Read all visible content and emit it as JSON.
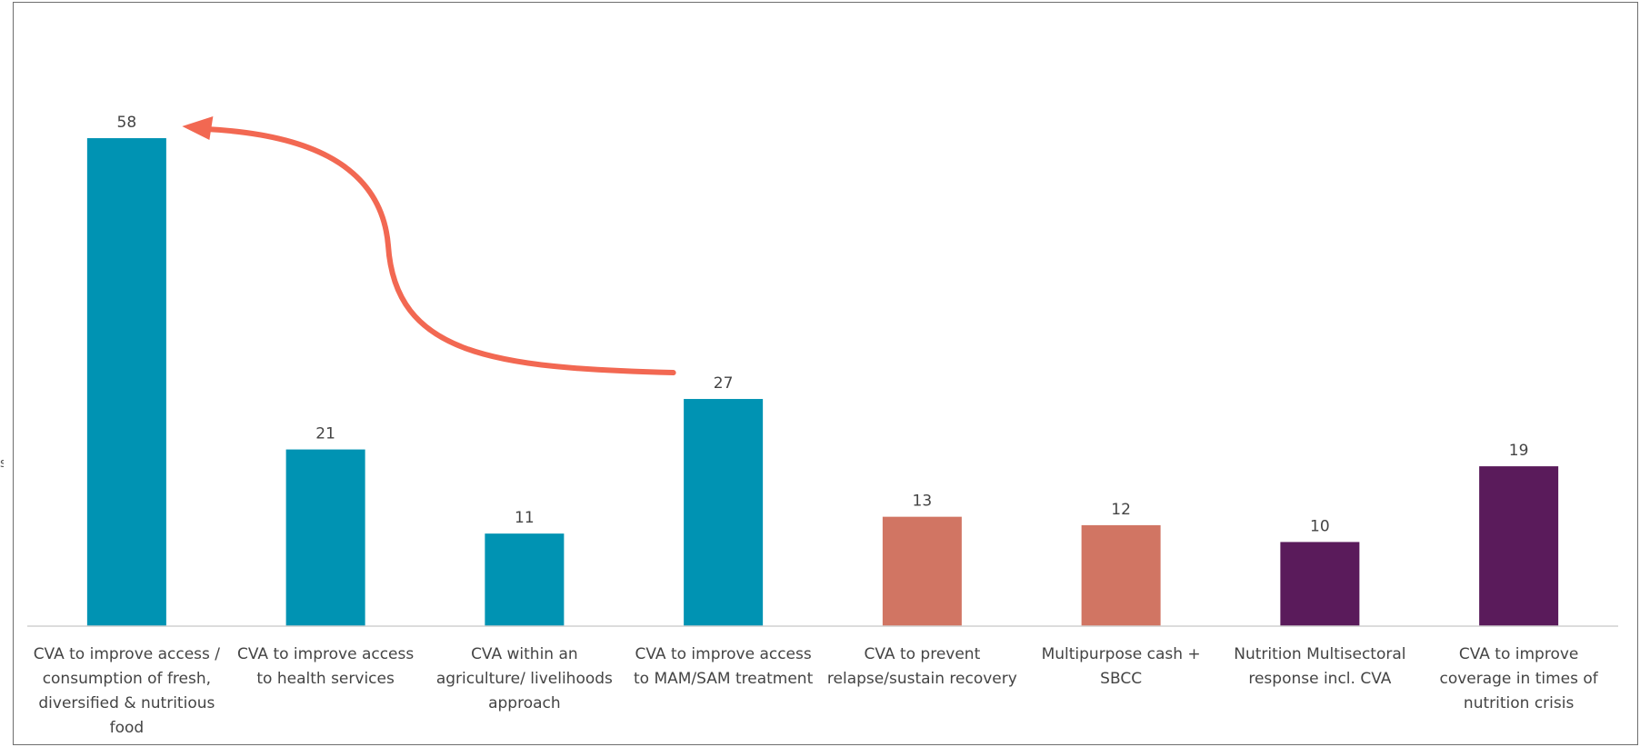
{
  "chart_data": {
    "type": "bar",
    "categories": [
      [
        "CVA to improve access /",
        "consumption of fresh,",
        "diversified & nutritious",
        "food"
      ],
      [
        "CVA to improve access",
        "to health services"
      ],
      [
        "CVA within an",
        "agriculture/ livelihoods",
        "approach"
      ],
      [
        "CVA to improve access",
        "to MAM/SAM treatment"
      ],
      [
        "CVA to prevent",
        "relapse/sustain recovery"
      ],
      [
        "Multipurpose cash +",
        "SBCC"
      ],
      [
        "Nutrition Multisectoral",
        "response incl. CVA"
      ],
      [
        "CVA to improve",
        "coverage in times of",
        "nutrition crisis"
      ]
    ],
    "values": [
      58,
      21,
      11,
      27,
      13,
      12,
      10,
      19
    ],
    "bar_colors": [
      "#0093b3",
      "#0093b3",
      "#0093b3",
      "#0093b3",
      "#d17563",
      "#d17563",
      "#5a1b5b",
      "#5a1b5b"
    ],
    "ylim": [
      0,
      62
    ],
    "grid": false,
    "legend": "none",
    "annotation": {
      "type": "curved-arrow",
      "from_category": 3,
      "to_category": 0,
      "color": "#f26852"
    }
  },
  "edge_mark": "s"
}
